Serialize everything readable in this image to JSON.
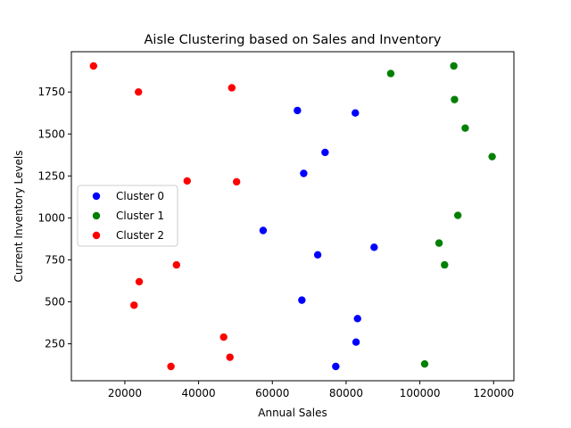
{
  "chart_data": {
    "type": "scatter",
    "title": "Aisle Clustering based on Sales and Inventory",
    "xlabel": "Annual Sales",
    "ylabel": "Current Inventory Levels",
    "xlim": [
      5500,
      125500
    ],
    "ylim": [
      30,
      1990
    ],
    "xticks": [
      20000,
      40000,
      60000,
      80000,
      100000,
      120000
    ],
    "yticks": [
      250,
      500,
      750,
      1000,
      1250,
      1500,
      1750
    ],
    "grid": false,
    "legend_position": "center-left",
    "series": [
      {
        "name": "Cluster 0",
        "color": "#0000ff",
        "points": [
          {
            "x": 66800,
            "y": 1640
          },
          {
            "x": 82500,
            "y": 1625
          },
          {
            "x": 74300,
            "y": 1390
          },
          {
            "x": 68500,
            "y": 1265
          },
          {
            "x": 57500,
            "y": 925
          },
          {
            "x": 87600,
            "y": 825
          },
          {
            "x": 72300,
            "y": 780
          },
          {
            "x": 68000,
            "y": 510
          },
          {
            "x": 83100,
            "y": 400
          },
          {
            "x": 82700,
            "y": 260
          },
          {
            "x": 77200,
            "y": 115
          }
        ]
      },
      {
        "name": "Cluster 1",
        "color": "#008000",
        "points": [
          {
            "x": 109200,
            "y": 1905
          },
          {
            "x": 92100,
            "y": 1860
          },
          {
            "x": 109400,
            "y": 1705
          },
          {
            "x": 112300,
            "y": 1535
          },
          {
            "x": 119600,
            "y": 1365
          },
          {
            "x": 110300,
            "y": 1015
          },
          {
            "x": 105200,
            "y": 850
          },
          {
            "x": 106700,
            "y": 720
          },
          {
            "x": 101300,
            "y": 130
          }
        ]
      },
      {
        "name": "Cluster 2",
        "color": "#ff0000",
        "points": [
          {
            "x": 11500,
            "y": 1905
          },
          {
            "x": 49000,
            "y": 1775
          },
          {
            "x": 23700,
            "y": 1750
          },
          {
            "x": 36900,
            "y": 1220
          },
          {
            "x": 50300,
            "y": 1215
          },
          {
            "x": 34000,
            "y": 720
          },
          {
            "x": 23900,
            "y": 620
          },
          {
            "x": 22500,
            "y": 480
          },
          {
            "x": 46800,
            "y": 290
          },
          {
            "x": 48500,
            "y": 170
          },
          {
            "x": 32500,
            "y": 115
          }
        ]
      }
    ]
  }
}
